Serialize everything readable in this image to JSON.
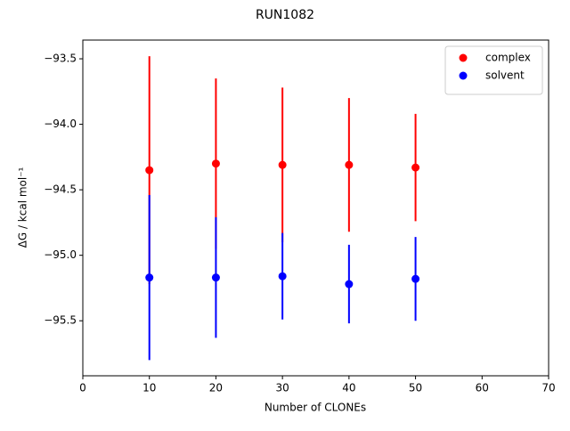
{
  "chart_data": {
    "type": "scatter",
    "title": "RUN1082",
    "x_label": "Number of CLONEs",
    "y_label": "ΔG / kcal mol⁻¹",
    "x": [
      10,
      20,
      30,
      40,
      50
    ],
    "series": [
      {
        "name": "complex",
        "color": "#ff0000",
        "values": [
          -94.35,
          -94.3,
          -94.31,
          -94.31,
          -94.33
        ],
        "errors": [
          0.87,
          0.65,
          0.59,
          0.51,
          0.41
        ]
      },
      {
        "name": "solvent",
        "color": "#0000ff",
        "values": [
          -95.17,
          -95.17,
          -95.16,
          -95.22,
          -95.18
        ],
        "errors": [
          0.63,
          0.46,
          0.33,
          0.3,
          0.32
        ]
      }
    ],
    "xlim": [
      0,
      70
    ],
    "xticks": [
      0,
      10,
      20,
      30,
      40,
      50,
      60,
      70
    ],
    "ylim": [
      -95.92,
      -93.357
    ],
    "yticks": [
      {
        "value": -93.5,
        "label": "−93.5"
      },
      {
        "value": -94.0,
        "label": "−94.0"
      },
      {
        "value": -94.5,
        "label": "−94.5"
      },
      {
        "value": -95.0,
        "label": "−95.0"
      },
      {
        "value": -95.5,
        "label": "−95.5"
      }
    ],
    "grid": false,
    "legend": "upper right"
  }
}
